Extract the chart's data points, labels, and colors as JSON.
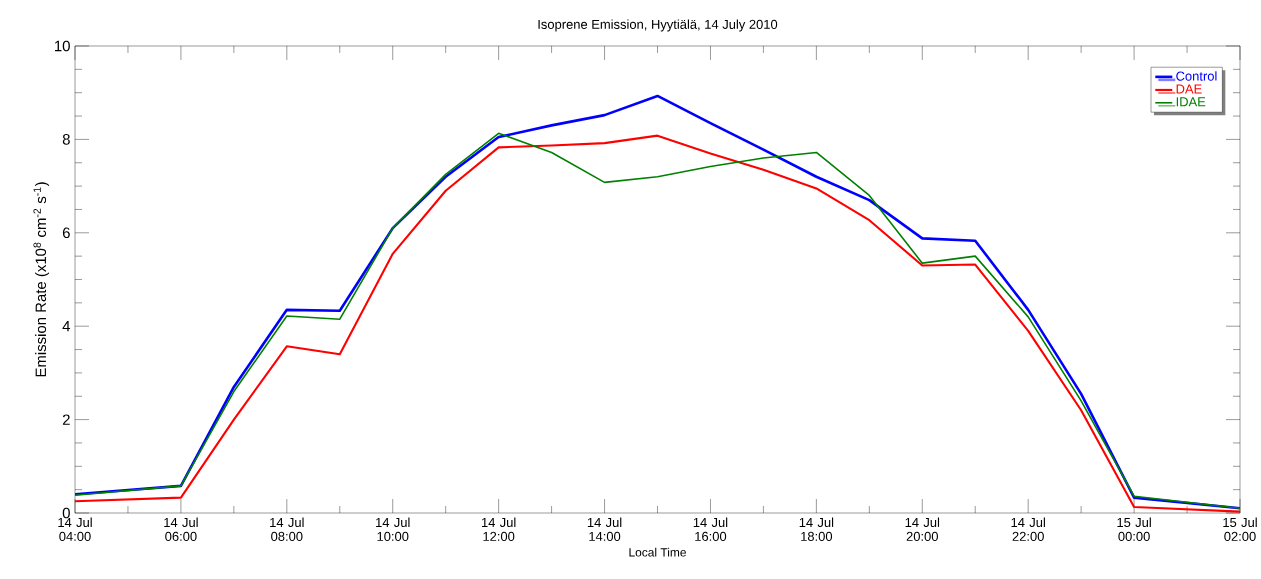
{
  "chart_data": {
    "type": "line",
    "title": "Isoprene Emission, Hyytiälä, 14 July 2010",
    "xlabel": "Local Time",
    "ylabel": "Emission Rate (x10$^{8}$ cm$^{-2}$ s$^{-1}$)",
    "x": [
      "2010-07-14T04:00",
      "2010-07-14T06:00",
      "2010-07-14T07:00",
      "2010-07-14T08:00",
      "2010-07-14T09:00",
      "2010-07-14T10:00",
      "2010-07-14T11:00",
      "2010-07-14T12:00",
      "2010-07-14T13:00",
      "2010-07-14T14:00",
      "2010-07-14T15:00",
      "2010-07-14T16:00",
      "2010-07-14T17:00",
      "2010-07-14T18:00",
      "2010-07-14T19:00",
      "2010-07-14T20:00",
      "2010-07-14T21:00",
      "2010-07-14T22:00",
      "2010-07-14T23:00",
      "2010-07-15T00:00",
      "2010-07-15T02:00"
    ],
    "series": [
      {
        "name": "Control",
        "color": "#0000ff",
        "values": [
          0.4,
          0.58,
          2.7,
          4.35,
          4.33,
          6.1,
          7.2,
          8.05,
          8.3,
          8.52,
          8.93,
          8.35,
          7.78,
          7.2,
          6.7,
          5.88,
          5.83,
          4.35,
          2.55,
          0.33,
          0.1
        ]
      },
      {
        "name": "DAE",
        "color": "#ff0000",
        "values": [
          0.25,
          0.33,
          2.0,
          3.57,
          3.4,
          5.55,
          6.9,
          7.83,
          7.87,
          7.92,
          8.08,
          7.7,
          7.35,
          6.95,
          6.27,
          5.3,
          5.32,
          3.9,
          2.2,
          0.13,
          0.03
        ]
      },
      {
        "name": "IDAE",
        "color": "#008000",
        "values": [
          0.38,
          0.58,
          2.6,
          4.22,
          4.15,
          6.1,
          7.25,
          8.13,
          7.72,
          7.08,
          7.2,
          7.42,
          7.6,
          7.72,
          6.8,
          5.35,
          5.5,
          4.2,
          2.4,
          0.36,
          0.1
        ]
      }
    ],
    "xlim": [
      "2010-07-14T04:00",
      "2010-07-15T02:00"
    ],
    "ylim": [
      0,
      10
    ],
    "xticks": [
      {
        "value": "2010-07-14T04:00",
        "label": "14 Jul 04:00"
      },
      {
        "value": "2010-07-14T06:00",
        "label": "14 Jul 06:00"
      },
      {
        "value": "2010-07-14T08:00",
        "label": "14 Jul 08:00"
      },
      {
        "value": "2010-07-14T10:00",
        "label": "14 Jul 10:00"
      },
      {
        "value": "2010-07-14T12:00",
        "label": "14 Jul 12:00"
      },
      {
        "value": "2010-07-14T14:00",
        "label": "14 Jul 14:00"
      },
      {
        "value": "2010-07-14T16:00",
        "label": "14 Jul 16:00"
      },
      {
        "value": "2010-07-14T18:00",
        "label": "14 Jul 18:00"
      },
      {
        "value": "2010-07-14T20:00",
        "label": "14 Jul 20:00"
      },
      {
        "value": "2010-07-14T22:00",
        "label": "14 Jul 22:00"
      },
      {
        "value": "2010-07-15T00:00",
        "label": "15 Jul 00:00"
      },
      {
        "value": "2010-07-15T02:00",
        "label": "15 Jul 02:00"
      }
    ],
    "yticks": [
      0,
      2,
      4,
      6,
      8,
      10
    ],
    "legend": "top right",
    "marker": "none",
    "line_style": "solid"
  }
}
